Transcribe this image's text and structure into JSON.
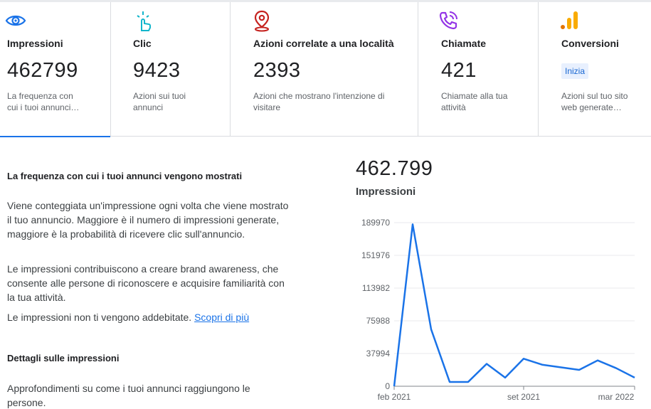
{
  "cards": [
    {
      "title": "Impressioni",
      "value": "462799",
      "desc": "La frequenza con cui i tuoi annunci…",
      "icon": "eye-icon",
      "active": true
    },
    {
      "title": "Clic",
      "value": "9423",
      "desc": "Azioni sui tuoi annunci",
      "icon": "tap-icon"
    },
    {
      "title": "Azioni correlate a una località",
      "value": "2393",
      "desc": "Azioni che mostrano l'intenzione di visitare",
      "icon": "location-pin-icon"
    },
    {
      "title": "Chiamate",
      "value": "421",
      "desc": "Chiamate alla tua attività",
      "icon": "phone-call-icon"
    },
    {
      "title": "Conversioni",
      "badge": "Inizia",
      "desc": "Azioni sul tuo sito web generate…",
      "icon": "analytics-bars-icon"
    }
  ],
  "info": {
    "heading": "La frequenza con cui i tuoi annunci vengono mostrati",
    "p1": "Viene conteggiata un'impressione ogni volta che viene mostrato il tuo annuncio. Maggiore è il numero di impressioni generate, maggiore è la probabilità di ricevere clic sull'annuncio.",
    "p2": "Le impressioni contribuiscono a creare brand awareness, che consente alle persone di riconoscere e acquisire familiarità con la tua attività.",
    "p3_text": "Le impressioni non ti vengono addebitate.",
    "p3_link": "Scopri di più",
    "details_heading": "Dettagli sulle impressioni",
    "details_text": "Approfondimenti su come i tuoi annunci raggiungono le persone."
  },
  "summary": {
    "total": "462.799",
    "label": "Impressioni"
  },
  "colors": {
    "accent": "#1a73e8",
    "line": "#1a73e8",
    "eye": "#1a73e8",
    "tap": "#12b5cb",
    "pin": "#c5221f",
    "phone": "#9334e6",
    "bars_orange": "#f9ab00",
    "bars_dark": "#e37400"
  },
  "chart_data": {
    "type": "line",
    "title": "",
    "xlabel": "",
    "ylabel": "",
    "ylim": [
      0,
      189970
    ],
    "y_ticks": [
      "189970",
      "151976",
      "113982",
      "75988",
      "37994",
      "0"
    ],
    "y_tick_values": [
      189970,
      151976,
      113982,
      75988,
      37994,
      0
    ],
    "x_tick_labels": [
      "feb 2021",
      "set 2021",
      "mar 2022"
    ],
    "x_tick_indices": [
      1,
      8,
      14
    ],
    "grid": true,
    "series": [
      {
        "values": [
          0,
          188000,
          66000,
          5000,
          5000,
          26000,
          10000,
          32000,
          25000,
          22000,
          19000,
          30000,
          21000,
          10000
        ]
      }
    ]
  }
}
